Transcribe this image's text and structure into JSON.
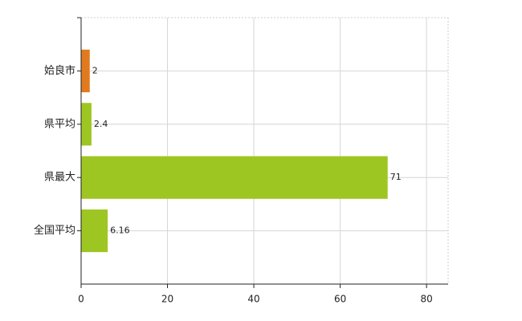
{
  "chart_data": {
    "type": "hbar",
    "categories": [
      "姶良市",
      "県平均",
      "県最大",
      "全国平均"
    ],
    "values": [
      2,
      2.4,
      71,
      6.16
    ],
    "colors": [
      "#e07a1f",
      "#9ec622",
      "#9ec622",
      "#9ec622"
    ],
    "xlim": [
      0,
      85
    ],
    "xticks": [
      0,
      20,
      40,
      60,
      80
    ],
    "grid": true
  }
}
